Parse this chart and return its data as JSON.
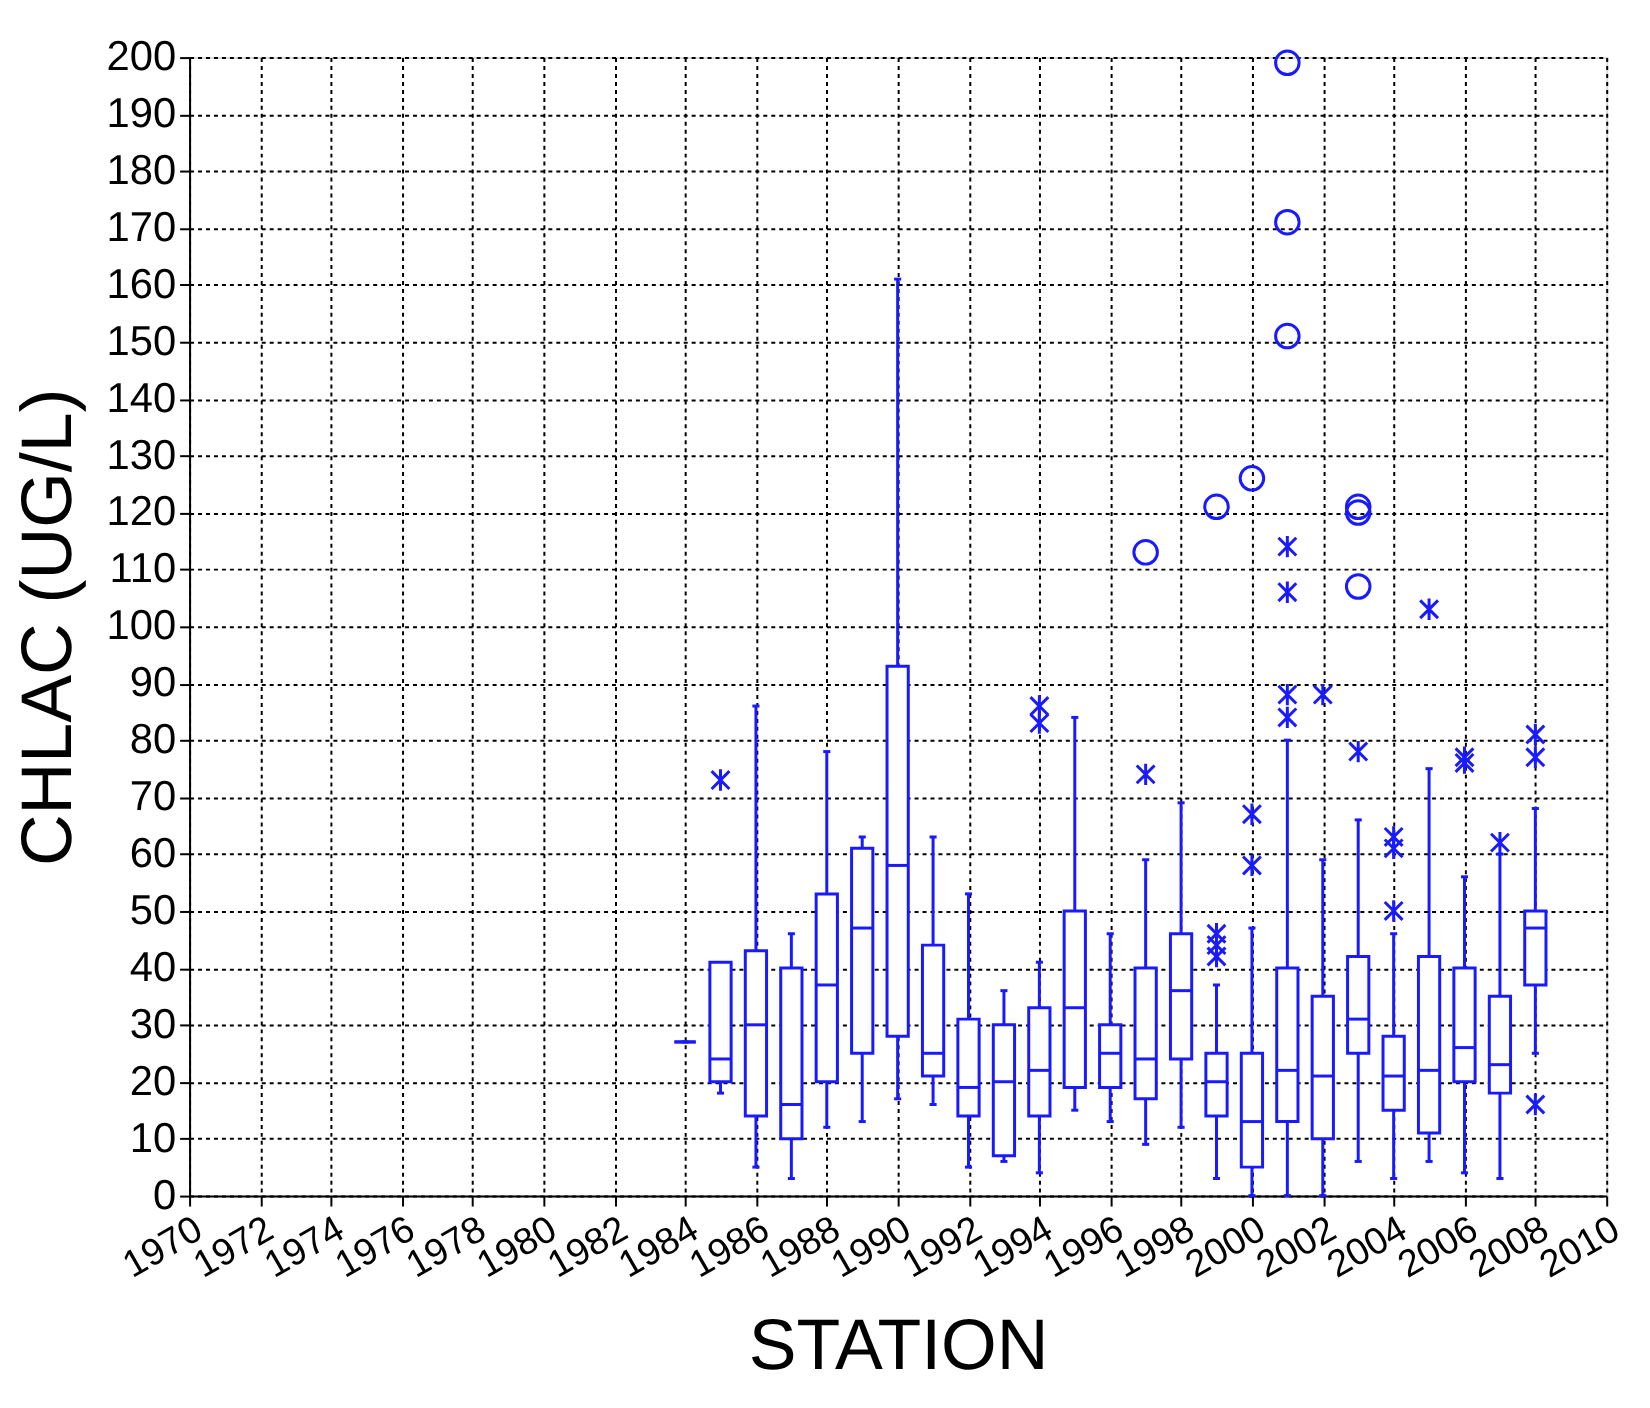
{
  "chart_data": {
    "type": "box",
    "xlabel": "STATION",
    "ylabel": "CHLAC (UG/L)",
    "x": [
      1984,
      1985,
      1986,
      1987,
      1988,
      1989,
      1990,
      1991,
      1992,
      1993,
      1994,
      1995,
      1996,
      1997,
      1998,
      1999,
      2000,
      2001,
      2002,
      2003,
      2004,
      2005,
      2006,
      2007,
      2008
    ],
    "xlim": [
      1970,
      2010
    ],
    "xticks": [
      1970,
      1972,
      1974,
      1976,
      1978,
      1980,
      1982,
      1984,
      1986,
      1988,
      1990,
      1992,
      1994,
      1996,
      1998,
      2000,
      2002,
      2004,
      2006,
      2008,
      2010
    ],
    "ylim": [
      0,
      200
    ],
    "yticks": [
      0,
      10,
      20,
      30,
      40,
      50,
      60,
      70,
      80,
      90,
      100,
      110,
      120,
      130,
      140,
      150,
      160,
      170,
      180,
      190,
      200
    ],
    "grid": true,
    "series": [
      {
        "color": "#1a1aff",
        "marker": "cross",
        "boxes": [
          {
            "low": 27,
            "q1": 27,
            "median": 27,
            "q3": 27,
            "high": 27
          },
          {
            "low": 18,
            "q1": 20,
            "median": 24,
            "q3": 41,
            "high": 41,
            "outliers": [
              73
            ]
          },
          {
            "low": 5,
            "q1": 14,
            "median": 30,
            "q3": 43,
            "high": 86
          },
          {
            "low": 3,
            "q1": 10,
            "median": 16,
            "q3": 40,
            "high": 46
          },
          {
            "low": 12,
            "q1": 20,
            "median": 37,
            "q3": 53,
            "high": 78
          },
          {
            "low": 13,
            "q1": 25,
            "median": 47,
            "q3": 61,
            "high": 63
          },
          {
            "low": 17,
            "q1": 28,
            "median": 58,
            "q3": 93,
            "high": 161
          },
          {
            "low": 16,
            "q1": 21,
            "median": 25,
            "q3": 44,
            "high": 63
          },
          {
            "low": 5,
            "q1": 14,
            "median": 19,
            "q3": 31,
            "high": 53
          },
          {
            "low": 6,
            "q1": 7,
            "median": 20,
            "q3": 30,
            "high": 36
          },
          {
            "low": 4,
            "q1": 14,
            "median": 22,
            "q3": 33,
            "high": 41,
            "outliers": [
              83,
              86
            ]
          },
          {
            "low": 15,
            "q1": 19,
            "median": 33,
            "q3": 50,
            "high": 84
          },
          {
            "low": 13,
            "q1": 19,
            "median": 25,
            "q3": 30,
            "high": 46
          },
          {
            "low": 9,
            "q1": 17,
            "median": 24,
            "q3": 40,
            "high": 59,
            "outliers": [
              74
            ]
          },
          {
            "low": 12,
            "q1": 24,
            "median": 36,
            "q3": 46,
            "high": 69
          },
          {
            "low": 3,
            "q1": 14,
            "median": 20,
            "q3": 25,
            "high": 37,
            "outliers": [
              42,
              44,
              46
            ]
          },
          {
            "low": 0,
            "q1": 5,
            "median": 13,
            "q3": 25,
            "high": 47,
            "outliers": [
              58,
              67
            ]
          },
          {
            "low": 0,
            "q1": 13,
            "median": 22,
            "q3": 40,
            "high": 80,
            "outliers": [
              84,
              88,
              106,
              114
            ]
          },
          {
            "low": 0,
            "q1": 10,
            "median": 21,
            "q3": 35,
            "high": 59,
            "outliers": [
              88
            ]
          },
          {
            "low": 6,
            "q1": 25,
            "median": 31,
            "q3": 42,
            "high": 66,
            "outliers": [
              78
            ]
          },
          {
            "low": 3,
            "q1": 15,
            "median": 21,
            "q3": 28,
            "high": 46,
            "outliers": [
              50,
              61,
              63
            ]
          },
          {
            "low": 6,
            "q1": 11,
            "median": 22,
            "q3": 42,
            "high": 75,
            "outliers": [
              103
            ]
          },
          {
            "low": 4,
            "q1": 20,
            "median": 26,
            "q3": 40,
            "high": 56,
            "outliers": [
              76,
              77
            ]
          },
          {
            "low": 3,
            "q1": 18,
            "median": 23,
            "q3": 35,
            "high": 60,
            "outliers": [
              62
            ]
          },
          {
            "low": 25,
            "q1": 37,
            "median": 47,
            "q3": 50,
            "high": 68,
            "outliers": [
              16,
              77,
              81
            ]
          }
        ]
      },
      {
        "type": "scatter",
        "color": "#1a1aff",
        "marker": "circle",
        "x": [
          1997,
          1999,
          2000,
          2001,
          2001,
          2001,
          2003,
          2003,
          2003
        ],
        "values": [
          113,
          121,
          126,
          151,
          171,
          199,
          107,
          120,
          121
        ]
      }
    ]
  }
}
